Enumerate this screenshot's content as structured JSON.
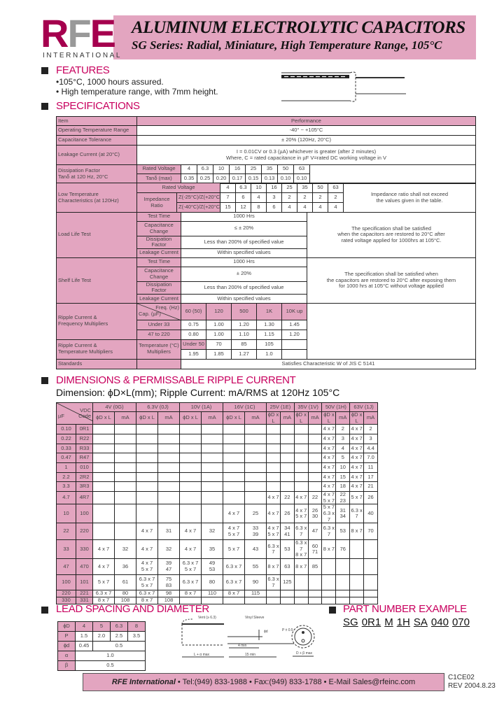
{
  "header": {
    "logo_text": "RFE",
    "logo_sub": "INTERNATIONAL",
    "title": "ALUMINUM ELECTROLYTIC CAPACITORS",
    "subtitle": "SG Series: Radial, Miniature, High Temperature Range, 105°C"
  },
  "features": {
    "heading": "FEATURES",
    "items": [
      "•105°C, 1000 hours assured.",
      "• High temperature range, with 7mm height."
    ]
  },
  "specifications": {
    "heading": "SPECIFICATIONS",
    "item_header": "Item",
    "performance_header": "Performance",
    "op_temp": {
      "label": "Operating Temperature Range",
      "value": "-40° ~ +105°C"
    },
    "cap_tol": {
      "label": "Capacitance Tolerance",
      "value": "± 20% (120Hz, 20°C)"
    },
    "leakage": {
      "label": "Leakage Current (at 20°C)",
      "line1": "I = 0.01CV or 0.3 (µA) whichever is greater (after 2 minutes)",
      "line2": "Where, C = rated capacitance in µF V=rated DC working voltage in V"
    },
    "dissipation": {
      "label": "Dissipation Factor\nTanδ at 120 Hz, 20°C",
      "rv_label": "Rated Voltage",
      "tan_label": "Tanδ (max)",
      "voltages": [
        "4",
        "6.3",
        "10",
        "16",
        "25",
        "35",
        "50",
        "63"
      ],
      "tan": [
        "0.35",
        "0.25",
        "0.20",
        "0.17",
        "0.15",
        "0.13",
        "0.10",
        "0.10"
      ]
    },
    "low_temp": {
      "label": "Low Temperature\nCharacteristics (at 120Hz)",
      "rv_label": "Rated Voltage",
      "ratio_label": "Impedance Ratio",
      "row1_label": "Z(-25°C)/Z(+20°C)",
      "row2_label": "Z(-40°C)/Z(+20°C)",
      "voltages": [
        "4",
        "6.3",
        "10",
        "16",
        "25",
        "35",
        "50",
        "63"
      ],
      "row1": [
        "7",
        "6",
        "4",
        "3",
        "2",
        "2",
        "2",
        "2"
      ],
      "row2": [
        "15",
        "12",
        "8",
        "6",
        "4",
        "4",
        "4",
        "4"
      ],
      "note": "Impedance ratio shall not exceed\nthe values given in the table."
    },
    "load_life": {
      "label": "Load Life Test",
      "rows": [
        [
          "Test Time",
          "1000 Hrs"
        ],
        [
          "Capacitance\nChange",
          "≤ ± 20%"
        ],
        [
          "Dissipation Factor",
          "Less than 200% of specified value"
        ],
        [
          "Leakage Current",
          "Within specified values"
        ]
      ],
      "note": "The specification shall be satisfied\nwhen the capacitors are restored to 20°C after\nrated voltage applied for 1000hrs at 105°C."
    },
    "shelf_life": {
      "label": "Shelf Life Test",
      "rows": [
        [
          "Test Time",
          "1000 Hrs"
        ],
        [
          "Capacitance\nChange",
          "± 20%"
        ],
        [
          "Dissipation Factor",
          "Less than 200% of specified value"
        ],
        [
          "Leakage Current",
          "Within specified values"
        ]
      ],
      "note": "The specification shall be satisfied when\nthe capacitors are restored to 20°C after exposing them\nfor 1000 hrs at 105°C without voltage applied"
    },
    "ripple_freq": {
      "label": "Ripple Current &\nFrequency Multipliers",
      "freq_label": "Freq. (Hz)",
      "cap_label": "Cap. (µF)",
      "freqs": [
        "60 (50)",
        "120",
        "500",
        "1K",
        "10K up"
      ],
      "rows": [
        {
          "cap": "Under 33",
          "values": [
            "0.75",
            "1.00",
            "1.20",
            "1.30",
            "1.45"
          ]
        },
        {
          "cap": "47 to 220",
          "values": [
            "0.80",
            "1.00",
            "1.10",
            "1.15",
            "1.20"
          ]
        }
      ]
    },
    "ripple_temp": {
      "label": "Ripple Current &\nTemperature Multipliers",
      "temp_label": "Temperature (°C)\nMultipliers",
      "temps": [
        "Under 50",
        "70",
        "85",
        "105"
      ],
      "multipliers": [
        "1.95",
        "1.85",
        "1.27",
        "1.0"
      ]
    },
    "standards": {
      "label": "Standards",
      "value": "Satisfies Characteristic W of JIS C 5141"
    }
  },
  "dimensions": {
    "heading": "DIMENSIONS & PERMISSABLE RIPPLE CURRENT",
    "subheading": "Dimension: ϕD×L(mm); Ripple Current: mA/RMS at 120Hz  105°C",
    "vdc_label": "VDC",
    "uf_label": "µF",
    "code_label": "Code",
    "dl_label": "ϕD x L",
    "ma_label": "mA",
    "voltages": [
      "4V (0G)",
      "6.3V (0J)",
      "10V (1A)",
      "16V (1C)",
      "25V (1E)",
      "35V (1V)",
      "50V (1H)",
      "63V (1J)"
    ],
    "rows": [
      {
        "uf": "0.10",
        "code": "0R1",
        "cells": [
          [
            "",
            ""
          ],
          [
            "",
            ""
          ],
          [
            "",
            ""
          ],
          [
            "",
            ""
          ],
          [
            "",
            ""
          ],
          [
            "",
            ""
          ],
          [
            "4 x 7",
            "2"
          ],
          [
            "4 x 7",
            "2"
          ]
        ]
      },
      {
        "uf": "0.22",
        "code": "R22",
        "cells": [
          [
            "",
            ""
          ],
          [
            "",
            ""
          ],
          [
            "",
            ""
          ],
          [
            "",
            ""
          ],
          [
            "",
            ""
          ],
          [
            "",
            ""
          ],
          [
            "4 x 7",
            "3"
          ],
          [
            "4 x 7",
            "3"
          ]
        ]
      },
      {
        "uf": "0.33",
        "code": "R33",
        "cells": [
          [
            "",
            ""
          ],
          [
            "",
            ""
          ],
          [
            "",
            ""
          ],
          [
            "",
            ""
          ],
          [
            "",
            ""
          ],
          [
            "",
            ""
          ],
          [
            "4 x 7",
            "4"
          ],
          [
            "4 x 7",
            "4.4"
          ]
        ]
      },
      {
        "uf": "0.47",
        "code": "R47",
        "cells": [
          [
            "",
            ""
          ],
          [
            "",
            ""
          ],
          [
            "",
            ""
          ],
          [
            "",
            ""
          ],
          [
            "",
            ""
          ],
          [
            "",
            ""
          ],
          [
            "4 x 7",
            "5"
          ],
          [
            "4 x 7",
            "7.0"
          ]
        ]
      },
      {
        "uf": "1",
        "code": "010",
        "cells": [
          [
            "",
            ""
          ],
          [
            "",
            ""
          ],
          [
            "",
            ""
          ],
          [
            "",
            ""
          ],
          [
            "",
            ""
          ],
          [
            "",
            ""
          ],
          [
            "4 x 7",
            "10"
          ],
          [
            "4 x 7",
            "11"
          ]
        ]
      },
      {
        "uf": "2.2",
        "code": "2R2",
        "cells": [
          [
            "",
            ""
          ],
          [
            "",
            ""
          ],
          [
            "",
            ""
          ],
          [
            "",
            ""
          ],
          [
            "",
            ""
          ],
          [
            "",
            ""
          ],
          [
            "4 x 7",
            "15"
          ],
          [
            "4 x 7",
            "17"
          ]
        ]
      },
      {
        "uf": "3.3",
        "code": "3R3",
        "cells": [
          [
            "",
            ""
          ],
          [
            "",
            ""
          ],
          [
            "",
            ""
          ],
          [
            "",
            ""
          ],
          [
            "",
            ""
          ],
          [
            "",
            ""
          ],
          [
            "4 x 7",
            "18"
          ],
          [
            "4 x 7",
            "21"
          ]
        ]
      },
      {
        "uf": "4.7",
        "code": "4R7",
        "cells": [
          [
            "",
            ""
          ],
          [
            "",
            ""
          ],
          [
            "",
            ""
          ],
          [
            "",
            ""
          ],
          [
            "4 x 7",
            "22"
          ],
          [
            "4 x 7",
            "22"
          ],
          [
            "4 x 7\n5 x 7",
            "22\n23"
          ],
          [
            "5 x 7",
            "26"
          ]
        ]
      },
      {
        "uf": "10",
        "code": "100",
        "cells": [
          [
            "",
            ""
          ],
          [
            "",
            ""
          ],
          [
            "",
            ""
          ],
          [
            "4 x 7",
            "25"
          ],
          [
            "4 x 7",
            "26"
          ],
          [
            "4 x 7\n5 x 7",
            "26\n30"
          ],
          [
            "5 x 7\n6.3 x 7",
            "31\n34"
          ],
          [
            "6.3 x 7",
            "40"
          ]
        ]
      },
      {
        "uf": "22",
        "code": "220",
        "cells": [
          [
            "",
            ""
          ],
          [
            "4 x 7",
            "31"
          ],
          [
            "4 x 7",
            "32"
          ],
          [
            "4 x 7\n5 x 7",
            "33\n39"
          ],
          [
            "4 x 7\n5 x 7",
            "34\n41"
          ],
          [
            "6.3 x 7",
            "47"
          ],
          [
            "6.3 x 7",
            "53"
          ],
          [
            "8 x 7",
            "70"
          ]
        ]
      },
      {
        "uf": "33",
        "code": "330",
        "cells": [
          [
            "4 x 7",
            "32"
          ],
          [
            "4 x 7",
            "32"
          ],
          [
            "4 x 7",
            "35"
          ],
          [
            "5 x 7",
            "43"
          ],
          [
            "6.3 x 7",
            "53"
          ],
          [
            "6.3 x 7\n8 x 7",
            "60\n71"
          ],
          [
            "8 x 7",
            "76"
          ],
          [
            "",
            ""
          ]
        ]
      },
      {
        "uf": "47",
        "code": "470",
        "cells": [
          [
            "4 x 7",
            "36"
          ],
          [
            "4 x 7\n5 x 7",
            "39\n47"
          ],
          [
            "6.3 x 7\n5 x 7",
            "49\n53"
          ],
          [
            "6.3 x 7",
            "55"
          ],
          [
            "8 x 7",
            "63"
          ],
          [
            "8 x 7",
            "85"
          ],
          [
            "",
            ""
          ],
          [
            "",
            ""
          ]
        ]
      },
      {
        "uf": "100",
        "code": "101",
        "cells": [
          [
            "5 x 7",
            "61"
          ],
          [
            "6.3 x 7\n5 x 7",
            "75\n83"
          ],
          [
            "6.3 x 7",
            "80"
          ],
          [
            "6.3 x 7",
            "90"
          ],
          [
            "6.3 x 7",
            "125"
          ],
          [
            "",
            ""
          ],
          [
            "",
            ""
          ],
          [
            "",
            ""
          ]
        ]
      },
      {
        "uf": "220",
        "code": "221",
        "cells": [
          [
            "6.3 x 7",
            "80"
          ],
          [
            "6.3 x 7",
            "98"
          ],
          [
            "8 x 7",
            "110"
          ],
          [
            "8 x 7",
            "115"
          ],
          [
            "",
            ""
          ],
          [
            "",
            ""
          ],
          [
            "",
            ""
          ],
          [
            "",
            ""
          ]
        ]
      },
      {
        "uf": "330",
        "code": "331",
        "cells": [
          [
            "8 x 7",
            "108"
          ],
          [
            "8 x 7",
            "108"
          ],
          [
            "",
            ""
          ],
          [
            "",
            ""
          ],
          [
            "",
            ""
          ],
          [
            "",
            ""
          ],
          [
            "",
            ""
          ],
          [
            "",
            ""
          ]
        ]
      }
    ]
  },
  "lead": {
    "heading": "LEAD SPACING AND DIAMETER",
    "d_label": "ϕD",
    "p_label": "P",
    "wire_label": "ϕd",
    "alpha_label": "α",
    "beta_label": "β",
    "d": [
      "4",
      "5",
      "6.3",
      "8"
    ],
    "p": [
      "1.5",
      "2.0",
      "2.5",
      "3.5"
    ],
    "wire_small": "0.45",
    "wire_rest": "0.5",
    "alpha": "1.0",
    "beta": "0.5",
    "diagram": {
      "vent": "Vent (≥ 6.3)",
      "sleeve": "Vinyl Sleeve",
      "phi_d": "ϕd",
      "p": "P ± 0.5",
      "four_min": "4 min",
      "fifteen_min": "15 min",
      "l_alpha": "L + α max",
      "d_beta": "D + β max"
    }
  },
  "part_number": {
    "heading": "PART NUMBER EXAMPLE",
    "segments": [
      "SG",
      "0R1",
      "M",
      "1H",
      "SA",
      "040",
      "070"
    ]
  },
  "footer": {
    "company": "RFE International",
    "contact": " • Tel:(949) 833-1988 • Fax:(949) 833-1788 • E-Mail Sales@rfeinc.com",
    "doc_code": "C1CE02",
    "rev": "REV 2004.8.23"
  },
  "colors": {
    "accent": "#c8005e",
    "pink": "#e3a5c0",
    "logo_red": "#a5004e",
    "logo_gray": "#999999"
  }
}
